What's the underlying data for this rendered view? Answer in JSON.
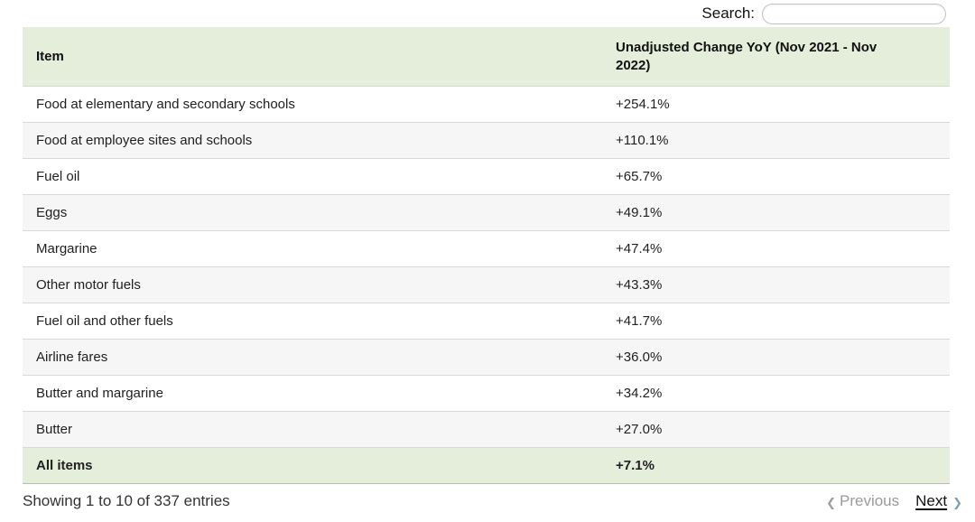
{
  "search": {
    "label": "Search:",
    "value": "",
    "placeholder": ""
  },
  "table": {
    "columns": [
      {
        "label": "Item"
      },
      {
        "label": "Unadjusted Change YoY (Nov 2021 - Nov 2022)"
      }
    ],
    "rows": [
      {
        "item": "Food at elementary and secondary schools",
        "change": "+254.1%",
        "highlight": false
      },
      {
        "item": "Food at employee sites and schools",
        "change": "+110.1%",
        "highlight": false
      },
      {
        "item": "Fuel oil",
        "change": "+65.7%",
        "highlight": false
      },
      {
        "item": "Eggs",
        "change": "+49.1%",
        "highlight": false
      },
      {
        "item": "Margarine",
        "change": "+47.4%",
        "highlight": false
      },
      {
        "item": "Other motor fuels",
        "change": "+43.3%",
        "highlight": false
      },
      {
        "item": "Fuel oil and other fuels",
        "change": "+41.7%",
        "highlight": false
      },
      {
        "item": "Airline fares",
        "change": "+36.0%",
        "highlight": false
      },
      {
        "item": "Butter and margarine",
        "change": "+34.2%",
        "highlight": false
      },
      {
        "item": "Butter",
        "change": "+27.0%",
        "highlight": false
      },
      {
        "item": "All items",
        "change": "+7.1%",
        "highlight": true
      }
    ]
  },
  "footer": {
    "showing_info": "Showing 1 to 10 of 337 entries",
    "previous_label": "Previous",
    "next_label": "Next",
    "prev_chevron": "❮",
    "next_chevron": "❯"
  },
  "colors": {
    "header_bg": "#e5eedb",
    "stripe_bg": "#f6f6f7",
    "row_divider": "#d8d8d8",
    "table_bottom_border": "#b9b9b9",
    "disabled_text": "#9a9a9a",
    "next_chevron_color": "#7f9db9"
  }
}
